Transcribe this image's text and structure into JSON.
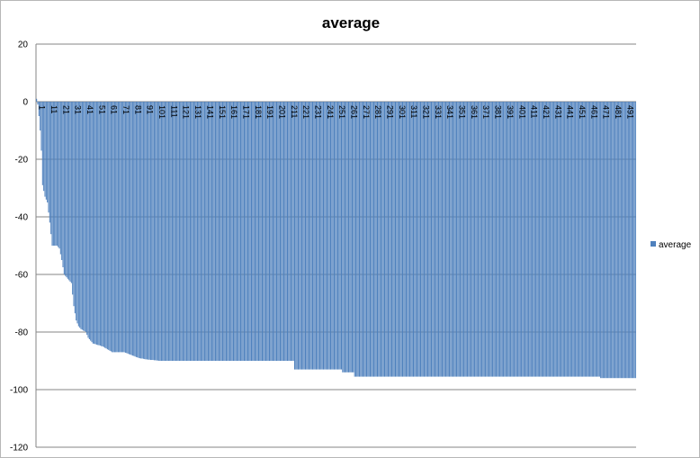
{
  "chart_data": {
    "type": "bar",
    "title": "average",
    "xlabel": "",
    "ylabel": "",
    "ylim": [
      -120,
      20
    ],
    "y_ticks": [
      20,
      0,
      -20,
      -40,
      -60,
      -80,
      -100,
      -120
    ],
    "grid": "horizontal major gridlines",
    "legend_position": "right",
    "bar_color": "#4f81bd",
    "n_points": 500,
    "x_tick_labels": [
      "1",
      "11",
      "21",
      "31",
      "41",
      "51",
      "61",
      "71",
      "81",
      "91",
      "101",
      "111",
      "121",
      "131",
      "141",
      "151",
      "161",
      "171",
      "181",
      "191",
      "201",
      "211",
      "221",
      "231",
      "241",
      "251",
      "261",
      "271",
      "281",
      "291",
      "301",
      "311",
      "321",
      "331",
      "341",
      "351",
      "361",
      "371",
      "381",
      "391",
      "401",
      "411",
      "421",
      "431",
      "441",
      "451",
      "461",
      "471",
      "481",
      "491"
    ],
    "series": [
      {
        "name": "average",
        "values_anchor_points": [
          [
            1,
            1
          ],
          [
            2,
            -1
          ],
          [
            3,
            -5
          ],
          [
            4,
            -10
          ],
          [
            5,
            -17
          ],
          [
            6,
            -29
          ],
          [
            8,
            -33
          ],
          [
            10,
            -35
          ],
          [
            12,
            -42
          ],
          [
            14,
            -50
          ],
          [
            18,
            -50
          ],
          [
            20,
            -51
          ],
          [
            22,
            -55
          ],
          [
            24,
            -60
          ],
          [
            26,
            -61
          ],
          [
            28,
            -62
          ],
          [
            30,
            -63
          ],
          [
            32,
            -71
          ],
          [
            34,
            -76
          ],
          [
            36,
            -78
          ],
          [
            38,
            -79
          ],
          [
            42,
            -80
          ],
          [
            44,
            -82
          ],
          [
            46,
            -83
          ],
          [
            48,
            -84
          ],
          [
            56,
            -85
          ],
          [
            60,
            -86
          ],
          [
            64,
            -87
          ],
          [
            74,
            -87
          ],
          [
            80,
            -88
          ],
          [
            86,
            -89
          ],
          [
            92,
            -89.5
          ],
          [
            104,
            -90
          ],
          [
            215,
            -90
          ],
          [
            216,
            -93
          ],
          [
            255,
            -93
          ],
          [
            256,
            -94
          ],
          [
            265,
            -94
          ],
          [
            266,
            -95.5
          ],
          [
            470,
            -95.5
          ],
          [
            471,
            -96
          ],
          [
            500,
            -96
          ]
        ]
      }
    ]
  }
}
